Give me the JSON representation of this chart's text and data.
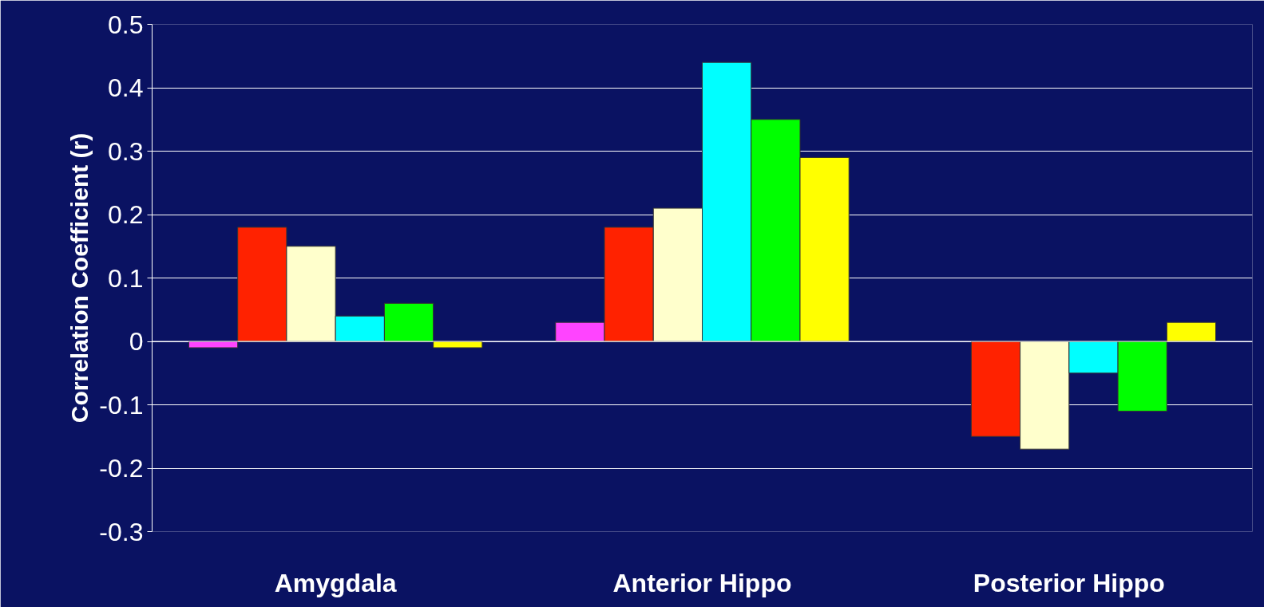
{
  "chart_data": {
    "type": "bar",
    "ylabel": "Correlation Coefficient (r)",
    "categories": [
      "Amygdala",
      "Anterior Hippo",
      "Posterior Hippo"
    ],
    "series": [
      {
        "color": "#ff44ff",
        "values": [
          -0.01,
          0.03,
          null
        ]
      },
      {
        "color": "#ff2200",
        "values": [
          0.18,
          0.18,
          -0.15
        ]
      },
      {
        "color": "#ffffcc",
        "values": [
          0.15,
          0.21,
          -0.17
        ]
      },
      {
        "color": "#00ffff",
        "values": [
          0.04,
          0.44,
          -0.05
        ]
      },
      {
        "color": "#00ff00",
        "values": [
          0.06,
          0.35,
          -0.11
        ]
      },
      {
        "color": "#ffff00",
        "values": [
          -0.01,
          0.29,
          0.03
        ]
      }
    ],
    "ylim": [
      -0.3,
      0.5
    ],
    "yticks": [
      -0.3,
      -0.2,
      -0.1,
      0,
      0.1,
      0.2,
      0.3,
      0.4,
      0.5
    ],
    "grid": "y"
  }
}
